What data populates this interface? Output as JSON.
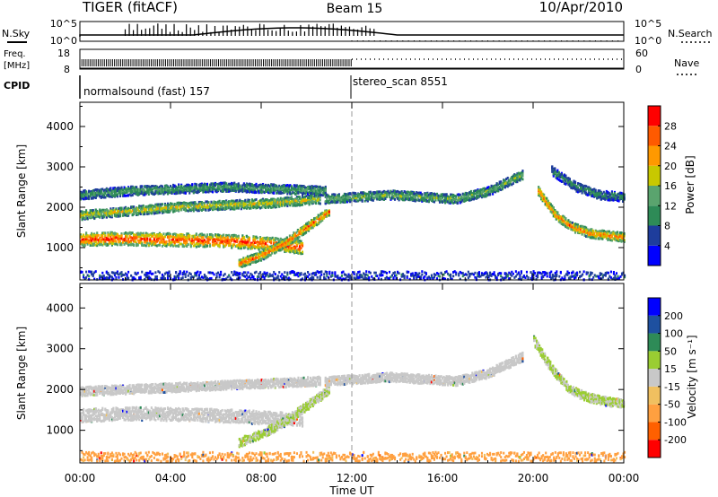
{
  "header": {
    "radar": "TIGER (fitACF)",
    "beam": "Beam 15",
    "date": "10/Apr/2010"
  },
  "strip_panels": {
    "nsky": {
      "left_label": "N.Sky",
      "left_ticks": [
        "10^5",
        "10^0"
      ],
      "right_ticks": [
        "10^5",
        "10^0"
      ],
      "right_label": "N.Search"
    },
    "freq": {
      "left_label_1": "Freq.",
      "left_label_2": "[MHz]",
      "left_ticks": [
        "18",
        "8"
      ],
      "right_ticks": [
        "60",
        "0"
      ],
      "right_label": "Nave"
    },
    "cpid": {
      "label": "CPID",
      "segments": [
        {
          "name": "normalsound (fast) 157"
        },
        {
          "name": "stereo_scan 8551"
        }
      ]
    }
  },
  "x_axis": {
    "label": "Time UT",
    "ticks": [
      "00:00",
      "04:00",
      "08:00",
      "12:00",
      "16:00",
      "20:00",
      "00:00"
    ]
  },
  "power_colorbar": {
    "label": "Power [dB]",
    "ticks": [
      "28",
      "24",
      "20",
      "16",
      "12",
      "8",
      "4"
    ],
    "colors": [
      "#0000ff",
      "#1e3d9c",
      "#2e8b57",
      "#5aa46e",
      "#c8c800",
      "#ff9900",
      "#ff5a00",
      "#ff0000"
    ]
  },
  "velocity_colorbar": {
    "label": "Velocity [m s⁻¹]",
    "ticks": [
      "200",
      "100",
      "50",
      "15",
      "-15",
      "-50",
      "-100",
      "-200"
    ],
    "colors": [
      "#ff0000",
      "#ff6000",
      "#ffa040",
      "#f0c060",
      "#c8c8c8",
      "#9acd32",
      "#2e8b57",
      "#1e50a0",
      "#0000ff"
    ]
  },
  "chart_data": [
    {
      "type": "heatmap",
      "title": "Beam 15",
      "xlabel": "Time UT",
      "ylabel": "Slant Range [km]",
      "xlim": [
        0,
        24
      ],
      "ylim": [
        200,
        4600
      ],
      "y_ticks": [
        "1000",
        "2000",
        "3000",
        "4000"
      ],
      "colorbar": "Power [dB]",
      "value_range": [
        0,
        30
      ],
      "features": [
        {
          "series": "lower",
          "start": 0.0,
          "end": 9.8,
          "range_km": [
            1200,
            1220,
            1200,
            1180,
            1160,
            1100,
            1000
          ],
          "value_db": 27
        },
        {
          "series": "middle",
          "start": 0.0,
          "end": 10.6,
          "range_km": [
            1800,
            1900,
            2000,
            2050,
            2100,
            2200
          ],
          "value_db": 18
        },
        {
          "series": "upper",
          "start": 0.0,
          "end": 10.8,
          "range_km": [
            2300,
            2400,
            2450,
            2500,
            2450,
            2400
          ],
          "value_db": 12
        },
        {
          "series": "rising",
          "start": 7.0,
          "end": 11.0,
          "range_km": [
            600,
            800,
            1100,
            1500,
            1900
          ],
          "value_db": 25
        },
        {
          "series": "midday",
          "start": 10.8,
          "end": 19.5,
          "range_km": [
            2200,
            2250,
            2300,
            2250,
            2200,
            2400,
            2800
          ],
          "value_db": 14
        },
        {
          "series": "evening",
          "start": 20.2,
          "end": 24.0,
          "range_km": [
            2400,
            1800,
            1500,
            1350,
            1300,
            1250
          ],
          "value_db": 24
        },
        {
          "series": "evening-upper",
          "start": 20.8,
          "end": 24.0,
          "range_km": [
            2900,
            2500,
            2300,
            2250
          ],
          "value_db": 10
        },
        {
          "series": "ground",
          "start": 0.0,
          "end": 24.0,
          "range_km": [
            300,
            300,
            300,
            300,
            300,
            300
          ],
          "value_db": 6
        }
      ]
    },
    {
      "type": "heatmap",
      "xlabel": "Time UT",
      "ylabel": "Slant Range [km]",
      "xlim": [
        0,
        24
      ],
      "ylim": [
        200,
        4600
      ],
      "y_ticks": [
        "1000",
        "2000",
        "3000",
        "4000"
      ],
      "colorbar": "Velocity [m s⁻¹]",
      "value_range": [
        -200,
        200
      ],
      "features": [
        {
          "series": "lower",
          "start": 0.0,
          "end": 9.8,
          "range_km": [
            1350,
            1400,
            1400,
            1380,
            1350,
            1300,
            1250
          ],
          "value_ms": 0
        },
        {
          "series": "middle",
          "start": 0.0,
          "end": 10.6,
          "range_km": [
            1950,
            2000,
            2050,
            2100,
            2150,
            2200
          ],
          "value_ms": 0
        },
        {
          "series": "rising",
          "start": 7.0,
          "end": 11.0,
          "range_km": [
            700,
            900,
            1200,
            1600,
            2000
          ],
          "value_ms": 25
        },
        {
          "series": "midday",
          "start": 10.8,
          "end": 19.5,
          "range_km": [
            2200,
            2250,
            2300,
            2250,
            2200,
            2400,
            2800
          ],
          "value_ms": 0
        },
        {
          "series": "evening",
          "start": 20.0,
          "end": 24.0,
          "range_km": [
            3200,
            2500,
            2000,
            1800,
            1700,
            1650
          ],
          "value_ms": 25
        },
        {
          "series": "ground",
          "start": 0.0,
          "end": 24.0,
          "range_km": [
            350,
            350,
            350,
            350,
            350,
            350
          ],
          "value_ms": -80
        }
      ]
    }
  ]
}
